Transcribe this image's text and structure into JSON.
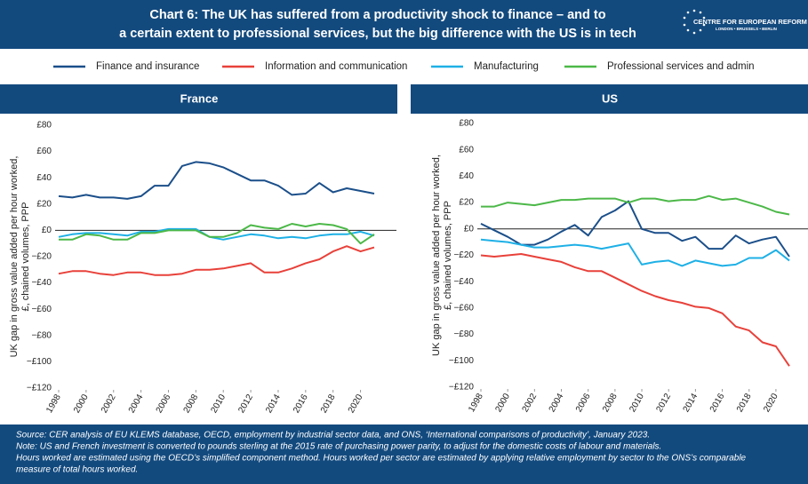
{
  "header": {
    "title": [
      "Chart 6: The UK has suffered from a productivity shock to finance – and to",
      "a certain extent to professional services, but the big difference with the US is in tech"
    ],
    "logo": [
      "CENTRE FOR EUROPEAN REFORM",
      "LONDON • BRUSSELS • BERLIN"
    ]
  },
  "chart_data": [
    {
      "type": "line",
      "title": "France",
      "ylabel": [
        "UK gap in gross value added per hour worked,",
        "£, chained volumes, PPP"
      ],
      "x": [
        1998,
        1999,
        2000,
        2001,
        2002,
        2003,
        2004,
        2005,
        2006,
        2007,
        2008,
        2009,
        2010,
        2011,
        2012,
        2013,
        2014,
        2015,
        2016,
        2017,
        2018,
        2019,
        2020,
        2021
      ],
      "xlim": [
        1998,
        2021
      ],
      "xticks": [
        1998,
        2000,
        2002,
        2004,
        2006,
        2008,
        2010,
        2012,
        2014,
        2016,
        2018,
        2020
      ],
      "ylim": [
        -120,
        80
      ],
      "yticks": [
        {
          "value": 80,
          "label": "£80"
        },
        {
          "value": 60,
          "label": "£60"
        },
        {
          "value": 40,
          "label": "£40"
        },
        {
          "value": 20,
          "label": "£20"
        },
        {
          "value": 0,
          "label": "£0"
        },
        {
          "value": -20,
          "label": "−£20"
        },
        {
          "value": -40,
          "label": "−£40"
        },
        {
          "value": -60,
          "label": "−£60"
        },
        {
          "value": -80,
          "label": "−£80"
        },
        {
          "value": -100,
          "label": "−£100"
        },
        {
          "value": -120,
          "label": "−£120"
        }
      ],
      "series": [
        {
          "name": "Finance and insurance",
          "color": "#1b4f8a",
          "values": [
            26,
            25,
            27,
            25,
            25,
            24,
            26,
            34,
            34,
            49,
            52,
            51,
            48,
            43,
            38,
            38,
            34,
            27,
            28,
            36,
            29,
            32,
            30,
            28
          ]
        },
        {
          "name": "Information and communication",
          "color": "#e8413a",
          "values": [
            -33,
            -31,
            -31,
            -33,
            -34,
            -32,
            -32,
            -34,
            -34,
            -33,
            -30,
            -30,
            -29,
            -27,
            -25,
            -32,
            -32,
            -29,
            -25,
            -22,
            -16,
            -12,
            -16,
            -13
          ]
        },
        {
          "name": "Manufacturing",
          "color": "#1eb0e6",
          "values": [
            -5,
            -3,
            -2,
            -2,
            -3,
            -4,
            -1,
            -1,
            1,
            1,
            1,
            -5,
            -7,
            -5,
            -3,
            -4,
            -6,
            -5,
            -6,
            -4,
            -3,
            -3,
            -1,
            -4
          ]
        },
        {
          "name": "Professional services and admin",
          "color": "#4cb848",
          "values": [
            -7,
            -7,
            -3,
            -4,
            -7,
            -7,
            -2,
            -2,
            0,
            0,
            0,
            -5,
            -5,
            -2,
            4,
            2,
            1,
            5,
            3,
            5,
            4,
            1,
            -10,
            -3
          ]
        }
      ]
    },
    {
      "type": "line",
      "title": "US",
      "ylabel": [
        "UK gap in gross value added per hour worked,",
        "£, chained volumes, PPP"
      ],
      "x": [
        1998,
        1999,
        2000,
        2001,
        2002,
        2003,
        2004,
        2005,
        2006,
        2007,
        2008,
        2009,
        2010,
        2011,
        2012,
        2013,
        2014,
        2015,
        2016,
        2017,
        2018,
        2019,
        2020,
        2021
      ],
      "xlim": [
        1998,
        2021
      ],
      "xticks": [
        1998,
        2000,
        2002,
        2004,
        2006,
        2008,
        2010,
        2012,
        2014,
        2016,
        2018,
        2020
      ],
      "ylim": [
        -120,
        80
      ],
      "yticks": [
        {
          "value": 80,
          "label": "£80"
        },
        {
          "value": 60,
          "label": "£60"
        },
        {
          "value": 40,
          "label": "£40"
        },
        {
          "value": 20,
          "label": "£20"
        },
        {
          "value": 0,
          "label": "£0"
        },
        {
          "value": -20,
          "label": "−£20"
        },
        {
          "value": -40,
          "label": "−£40"
        },
        {
          "value": -60,
          "label": "−£60"
        },
        {
          "value": -80,
          "label": "−£80"
        },
        {
          "value": -100,
          "label": "−£100"
        },
        {
          "value": -120,
          "label": "−£120"
        }
      ],
      "series": [
        {
          "name": "Finance and insurance",
          "color": "#1b4f8a",
          "values": [
            4,
            -1,
            -6,
            -12,
            -12,
            -8,
            -2,
            3,
            -5,
            9,
            14,
            21,
            0,
            -3,
            -3,
            -9,
            -6,
            -15,
            -15,
            -5,
            -11,
            -8,
            -6,
            -21
          ]
        },
        {
          "name": "Information and communication",
          "color": "#e8413a",
          "values": [
            -20,
            -21,
            -20,
            -19,
            -21,
            -23,
            -25,
            -29,
            -32,
            -32,
            -37,
            -42,
            -47,
            -51,
            -54,
            -56,
            -59,
            -60,
            -64,
            -74,
            -77,
            -86,
            -89,
            -104
          ]
        },
        {
          "name": "Manufacturing",
          "color": "#1eb0e6",
          "values": [
            -8,
            -9,
            -10,
            -12,
            -14,
            -14,
            -13,
            -12,
            -13,
            -15,
            -13,
            -11,
            -27,
            -25,
            -24,
            -28,
            -24,
            -26,
            -28,
            -27,
            -22,
            -22,
            -16,
            -24
          ]
        },
        {
          "name": "Professional services and admin",
          "color": "#4cb848",
          "values": [
            17,
            17,
            20,
            19,
            18,
            20,
            22,
            22,
            23,
            23,
            23,
            20,
            23,
            23,
            21,
            22,
            22,
            25,
            22,
            23,
            20,
            17,
            13,
            11
          ]
        }
      ]
    }
  ],
  "notes": [
    "Source: CER analysis of EU KLEMS database, OECD, employment by industrial sector data, and ONS, ‘International comparisons of productivity’, January 2023.",
    "Note: US and French investment is converted to pounds sterling at the 2015 rate of purchasing power parity, to adjust for the domestic costs of labour and materials.",
    "Hours worked are estimated using the OECD’s simplified component method. Hours worked per sector are estimated by applying relative employment by sector to the ONS’s comparable",
    "measure of total hours worked."
  ]
}
